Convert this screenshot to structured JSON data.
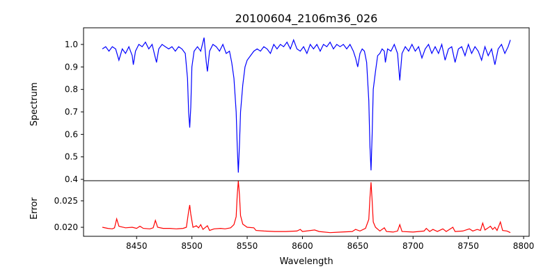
{
  "chart_data": [
    {
      "type": "line",
      "title": "20100604_2106m36_026",
      "xlabel": "",
      "ylabel": "Spectrum",
      "xlim": [
        8402,
        8805
      ],
      "ylim": [
        0.394,
        1.074
      ],
      "yticks": [
        "0.4",
        "0.5",
        "0.6",
        "0.7",
        "0.8",
        "0.9",
        "1.0"
      ],
      "color": "#0000ff",
      "points": [
        [
          8419,
          0.98
        ],
        [
          8422,
          0.99
        ],
        [
          8425,
          0.97
        ],
        [
          8428,
          0.99
        ],
        [
          8431,
          0.98
        ],
        [
          8434,
          0.93
        ],
        [
          8437,
          0.98
        ],
        [
          8440,
          0.96
        ],
        [
          8443,
          0.99
        ],
        [
          8446,
          0.95
        ],
        [
          8447,
          0.91
        ],
        [
          8449,
          0.97
        ],
        [
          8452,
          1.0
        ],
        [
          8455,
          0.99
        ],
        [
          8458,
          1.01
        ],
        [
          8461,
          0.98
        ],
        [
          8464,
          1.0
        ],
        [
          8466,
          0.96
        ],
        [
          8468,
          0.92
        ],
        [
          8470,
          0.98
        ],
        [
          8473,
          1.0
        ],
        [
          8476,
          0.99
        ],
        [
          8479,
          0.98
        ],
        [
          8482,
          0.99
        ],
        [
          8485,
          0.97
        ],
        [
          8488,
          0.99
        ],
        [
          8491,
          0.98
        ],
        [
          8494,
          0.96
        ],
        [
          8496,
          0.85
        ],
        [
          8497,
          0.7
        ],
        [
          8498,
          0.63
        ],
        [
          8499,
          0.72
        ],
        [
          8500,
          0.9
        ],
        [
          8502,
          0.97
        ],
        [
          8505,
          0.99
        ],
        [
          8508,
          0.97
        ],
        [
          8511,
          1.03
        ],
        [
          8513,
          0.92
        ],
        [
          8514,
          0.88
        ],
        [
          8516,
          0.97
        ],
        [
          8519,
          1.0
        ],
        [
          8522,
          0.99
        ],
        [
          8525,
          0.97
        ],
        [
          8528,
          1.0
        ],
        [
          8531,
          0.96
        ],
        [
          8534,
          0.97
        ],
        [
          8536,
          0.92
        ],
        [
          8538,
          0.85
        ],
        [
          8540,
          0.7
        ],
        [
          8541,
          0.55
        ],
        [
          8542,
          0.43
        ],
        [
          8543,
          0.55
        ],
        [
          8544,
          0.7
        ],
        [
          8546,
          0.82
        ],
        [
          8548,
          0.9
        ],
        [
          8550,
          0.93
        ],
        [
          8553,
          0.95
        ],
        [
          8556,
          0.97
        ],
        [
          8559,
          0.98
        ],
        [
          8562,
          0.97
        ],
        [
          8565,
          0.99
        ],
        [
          8568,
          0.98
        ],
        [
          8571,
          0.96
        ],
        [
          8574,
          1.0
        ],
        [
          8577,
          0.98
        ],
        [
          8580,
          1.0
        ],
        [
          8583,
          0.99
        ],
        [
          8586,
          1.01
        ],
        [
          8589,
          0.98
        ],
        [
          8592,
          1.02
        ],
        [
          8595,
          0.98
        ],
        [
          8598,
          0.97
        ],
        [
          8601,
          0.99
        ],
        [
          8604,
          0.96
        ],
        [
          8607,
          1.0
        ],
        [
          8610,
          0.98
        ],
        [
          8613,
          1.0
        ],
        [
          8616,
          0.97
        ],
        [
          8619,
          1.0
        ],
        [
          8622,
          0.99
        ],
        [
          8625,
          1.01
        ],
        [
          8628,
          0.98
        ],
        [
          8631,
          1.0
        ],
        [
          8634,
          0.99
        ],
        [
          8637,
          1.0
        ],
        [
          8640,
          0.98
        ],
        [
          8643,
          1.0
        ],
        [
          8646,
          0.97
        ],
        [
          8648,
          0.94
        ],
        [
          8650,
          0.9
        ],
        [
          8652,
          0.96
        ],
        [
          8654,
          0.98
        ],
        [
          8656,
          0.97
        ],
        [
          8658,
          0.92
        ],
        [
          8660,
          0.75
        ],
        [
          8661,
          0.55
        ],
        [
          8662,
          0.44
        ],
        [
          8663,
          0.6
        ],
        [
          8664,
          0.8
        ],
        [
          8666,
          0.88
        ],
        [
          8668,
          0.95
        ],
        [
          8670,
          0.96
        ],
        [
          8672,
          0.98
        ],
        [
          8674,
          0.97
        ],
        [
          8675,
          0.92
        ],
        [
          8677,
          0.98
        ],
        [
          8680,
          0.97
        ],
        [
          8683,
          1.0
        ],
        [
          8686,
          0.96
        ],
        [
          8688,
          0.84
        ],
        [
          8690,
          0.96
        ],
        [
          8693,
          0.99
        ],
        [
          8696,
          0.97
        ],
        [
          8699,
          1.0
        ],
        [
          8702,
          0.97
        ],
        [
          8705,
          0.99
        ],
        [
          8708,
          0.94
        ],
        [
          8711,
          0.98
        ],
        [
          8714,
          1.0
        ],
        [
          8717,
          0.96
        ],
        [
          8720,
          0.99
        ],
        [
          8723,
          0.96
        ],
        [
          8726,
          1.0
        ],
        [
          8729,
          0.93
        ],
        [
          8732,
          0.98
        ],
        [
          8735,
          0.99
        ],
        [
          8738,
          0.92
        ],
        [
          8741,
          0.98
        ],
        [
          8744,
          0.99
        ],
        [
          8747,
          0.95
        ],
        [
          8750,
          1.0
        ],
        [
          8753,
          0.96
        ],
        [
          8756,
          0.99
        ],
        [
          8759,
          0.97
        ],
        [
          8762,
          0.93
        ],
        [
          8765,
          0.99
        ],
        [
          8768,
          0.95
        ],
        [
          8771,
          0.98
        ],
        [
          8774,
          0.91
        ],
        [
          8777,
          0.98
        ],
        [
          8780,
          1.0
        ],
        [
          8783,
          0.96
        ],
        [
          8786,
          0.99
        ],
        [
          8788,
          1.02
        ]
      ]
    },
    {
      "type": "line",
      "xlabel": "Wavelength",
      "ylabel": "Error",
      "xlim": [
        8402,
        8805
      ],
      "ylim": [
        0.0183,
        0.0288
      ],
      "yticks": [
        "0.020",
        "0.025"
      ],
      "xticks": [
        "8450",
        "8500",
        "8550",
        "8600",
        "8650",
        "8700",
        "8750",
        "8800"
      ],
      "color": "#ff0000",
      "points": [
        [
          8419,
          0.02
        ],
        [
          8424,
          0.0198
        ],
        [
          8428,
          0.0197
        ],
        [
          8430,
          0.0199
        ],
        [
          8432,
          0.0216
        ],
        [
          8434,
          0.0202
        ],
        [
          8436,
          0.0201
        ],
        [
          8440,
          0.0199
        ],
        [
          8446,
          0.02
        ],
        [
          8450,
          0.0198
        ],
        [
          8453,
          0.0202
        ],
        [
          8456,
          0.0198
        ],
        [
          8462,
          0.0197
        ],
        [
          8465,
          0.0199
        ],
        [
          8467,
          0.0213
        ],
        [
          8469,
          0.02
        ],
        [
          8474,
          0.0198
        ],
        [
          8480,
          0.0198
        ],
        [
          8486,
          0.0197
        ],
        [
          8492,
          0.0198
        ],
        [
          8495,
          0.02
        ],
        [
          8497,
          0.023
        ],
        [
          8498,
          0.0242
        ],
        [
          8499,
          0.0225
        ],
        [
          8501,
          0.02
        ],
        [
          8504,
          0.0203
        ],
        [
          8506,
          0.0199
        ],
        [
          8508,
          0.0205
        ],
        [
          8510,
          0.0196
        ],
        [
          8514,
          0.0203
        ],
        [
          8516,
          0.0194
        ],
        [
          8520,
          0.0197
        ],
        [
          8526,
          0.0198
        ],
        [
          8530,
          0.0197
        ],
        [
          8535,
          0.0199
        ],
        [
          8538,
          0.0205
        ],
        [
          8540,
          0.022
        ],
        [
          8541,
          0.026
        ],
        [
          8542,
          0.0288
        ],
        [
          8543,
          0.0262
        ],
        [
          8544,
          0.0222
        ],
        [
          8546,
          0.0206
        ],
        [
          8550,
          0.02
        ],
        [
          8556,
          0.0199
        ],
        [
          8558,
          0.0194
        ],
        [
          8565,
          0.0193
        ],
        [
          8575,
          0.0192
        ],
        [
          8585,
          0.0192
        ],
        [
          8595,
          0.0193
        ],
        [
          8598,
          0.0196
        ],
        [
          8600,
          0.0192
        ],
        [
          8611,
          0.0195
        ],
        [
          8615,
          0.0192
        ],
        [
          8625,
          0.019
        ],
        [
          8635,
          0.0191
        ],
        [
          8645,
          0.0192
        ],
        [
          8648,
          0.0196
        ],
        [
          8652,
          0.0193
        ],
        [
          8657,
          0.0198
        ],
        [
          8660,
          0.0215
        ],
        [
          8661,
          0.0255
        ],
        [
          8662,
          0.0285
        ],
        [
          8663,
          0.025
        ],
        [
          8664,
          0.021
        ],
        [
          8666,
          0.02
        ],
        [
          8670,
          0.0193
        ],
        [
          8674,
          0.0199
        ],
        [
          8676,
          0.0192
        ],
        [
          8682,
          0.0191
        ],
        [
          8686,
          0.0193
        ],
        [
          8688,
          0.0205
        ],
        [
          8690,
          0.0192
        ],
        [
          8700,
          0.0191
        ],
        [
          8710,
          0.0193
        ],
        [
          8712,
          0.0198
        ],
        [
          8715,
          0.0192
        ],
        [
          8718,
          0.0196
        ],
        [
          8722,
          0.0192
        ],
        [
          8727,
          0.0197
        ],
        [
          8730,
          0.0192
        ],
        [
          8736,
          0.02
        ],
        [
          8738,
          0.0192
        ],
        [
          8745,
          0.0193
        ],
        [
          8751,
          0.0197
        ],
        [
          8754,
          0.0193
        ],
        [
          8758,
          0.0196
        ],
        [
          8761,
          0.0194
        ],
        [
          8763,
          0.0208
        ],
        [
          8765,
          0.0195
        ],
        [
          8768,
          0.0199
        ],
        [
          8770,
          0.0202
        ],
        [
          8772,
          0.0196
        ],
        [
          8774,
          0.02
        ],
        [
          8776,
          0.0194
        ],
        [
          8779,
          0.021
        ],
        [
          8781,
          0.0194
        ],
        [
          8785,
          0.0193
        ],
        [
          8788,
          0.019
        ]
      ]
    }
  ]
}
